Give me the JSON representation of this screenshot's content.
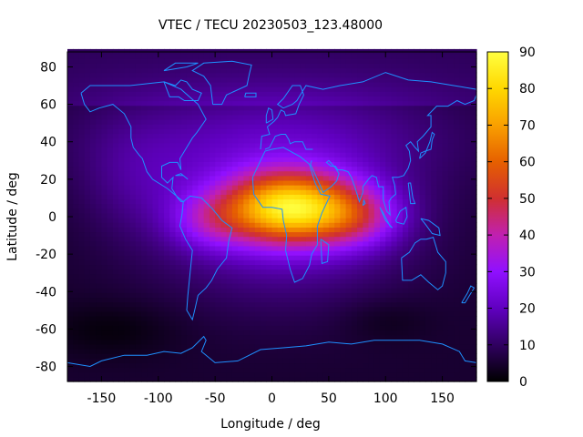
{
  "chart_data": {
    "type": "heatmap",
    "title": "VTEC / TECU 20230503_123.48000",
    "xlabel": "Longitude / deg",
    "ylabel": "Latitude / deg",
    "xlim": [
      -180,
      180
    ],
    "ylim": [
      -88,
      88
    ],
    "x_ticks": [
      -150,
      -100,
      -50,
      0,
      50,
      100,
      150
    ],
    "y_ticks": [
      -80,
      -60,
      -40,
      -20,
      0,
      20,
      40,
      60,
      80
    ],
    "colorbar": {
      "min": 0,
      "max": 90,
      "ticks": [
        0,
        10,
        20,
        30,
        40,
        50,
        60,
        70,
        80,
        90
      ],
      "colormap": [
        "#000000",
        "#300060",
        "#6000c0",
        "#9010ff",
        "#c020b0",
        "#d03030",
        "#e66000",
        "#f9a000",
        "#ffd800",
        "#ffff40"
      ]
    },
    "grid": false,
    "overlay": "coastlines",
    "coastline_color": "#1e90ff",
    "field_description": "Equatorial ionization anomaly peak of about 65-75 TECU near 0-20N, 0-40E; values fall to 0-10 TECU at high latitudes and in the southern Pacific night side"
  }
}
